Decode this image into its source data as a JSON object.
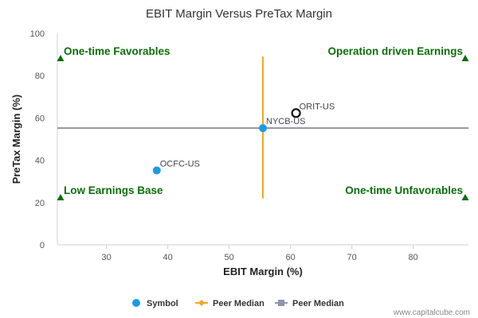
{
  "chart_data": {
    "type": "scatter",
    "title": "EBIT Margin Versus PreTax Margin",
    "xlabel": "EBIT Margin (%)",
    "ylabel": "PreTax Margin (%)",
    "xlim": [
      22,
      89
    ],
    "ylim": [
      0,
      100
    ],
    "xticks": [
      30,
      40,
      50,
      60,
      70,
      80
    ],
    "yticks": [
      0,
      20,
      40,
      60,
      80,
      100
    ],
    "grid": false,
    "points": [
      {
        "label": "OCFC-US",
        "x": 38.2,
        "y": 35.2,
        "style": "filled"
      },
      {
        "label": "NYCB-US",
        "x": 55.5,
        "y": 55.2,
        "style": "filled"
      },
      {
        "label": "ORIT-US",
        "x": 60.9,
        "y": 62.3,
        "style": "hollow"
      }
    ],
    "peer_median": {
      "x": 55.5,
      "y": 55.2,
      "vertical_y_range": [
        22,
        89
      ],
      "horizontal_x_range": [
        22,
        89
      ]
    },
    "quadrants": [
      {
        "label": "One-time Favorables",
        "position": "top-left"
      },
      {
        "label": "Operation driven Earnings",
        "position": "top-right"
      },
      {
        "label": "Low Earnings Base",
        "position": "bottom-left"
      },
      {
        "label": "One-time Unfavorables",
        "position": "bottom-right"
      }
    ],
    "legend": {
      "placement": "bottom-center",
      "items": [
        {
          "label": "Symbol",
          "marker": "circle",
          "color": "#1a9be6"
        },
        {
          "label": "Peer Median",
          "marker": "diamond-line",
          "color": "#f5a623"
        },
        {
          "label": "Peer Median",
          "marker": "square-line",
          "color": "#8c96aa"
        }
      ]
    },
    "colors": {
      "symbol": "#1a9be6",
      "vertical_median": "#f5a623",
      "horizontal_median": "#8c96aa",
      "quadrant_text": "#0a6e0a",
      "triangle": "#0a6e0a"
    }
  },
  "credit": "www.capitalcube.com"
}
